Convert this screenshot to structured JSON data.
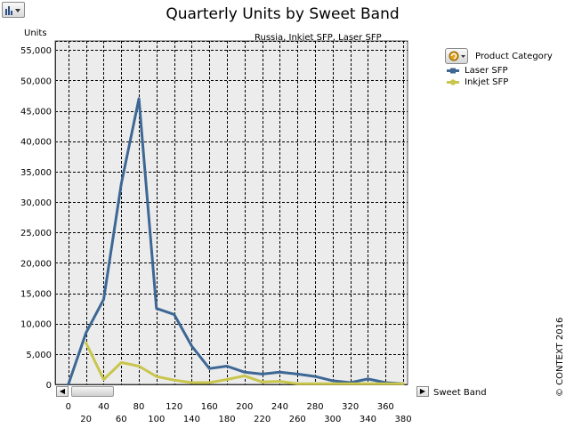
{
  "toolbar": {
    "chart_type_icon": "bar-chart-icon"
  },
  "legend": {
    "title": "Product Category",
    "icon": "refresh-icon",
    "items": [
      {
        "label": "Laser SFP",
        "color": "#3d6794"
      },
      {
        "label": "Inkjet SFP",
        "color": "#c9c64e"
      }
    ]
  },
  "footer": {
    "copyright": "© CONTEXT 2016"
  },
  "chart_data": {
    "type": "line",
    "title": "Quarterly Units by Sweet Band",
    "subtitle": "Russia, Inkjet SFP, Laser SFP",
    "xlabel": "Sweet Band",
    "ylabel": "Units",
    "x": [
      0,
      20,
      40,
      60,
      80,
      100,
      120,
      140,
      160,
      180,
      200,
      220,
      240,
      260,
      280,
      300,
      320,
      340,
      360,
      380
    ],
    "xlim": [
      -15,
      385
    ],
    "ylim": [
      0,
      56500
    ],
    "yticks": [
      0,
      5000,
      10000,
      15000,
      20000,
      25000,
      30000,
      35000,
      40000,
      45000,
      50000,
      55000
    ],
    "grid": true,
    "legend_position": "right",
    "series": [
      {
        "name": "Laser SFP",
        "color": "#3d6794",
        "values": [
          0,
          8500,
          14000,
          33000,
          47000,
          12500,
          11500,
          6300,
          2600,
          3000,
          2000,
          1700,
          2000,
          1700,
          1300,
          600,
          300,
          900,
          300,
          100
        ]
      },
      {
        "name": "Inkjet SFP",
        "color": "#c9c64e",
        "values": [
          null,
          6800,
          800,
          3600,
          3000,
          1300,
          700,
          300,
          300,
          800,
          1400,
          400,
          500,
          100,
          100,
          100,
          100,
          100,
          100,
          100
        ]
      }
    ]
  }
}
